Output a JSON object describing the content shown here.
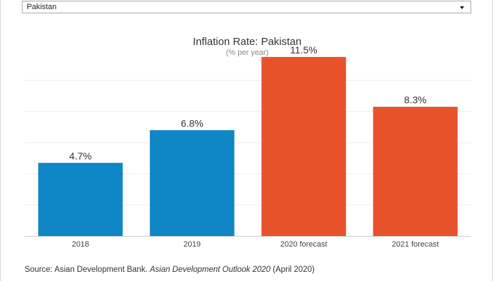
{
  "country_select": {
    "selected": "Pakistan"
  },
  "chart_data": {
    "type": "bar",
    "title": "Inflation Rate: Pakistan",
    "subtitle": "(% per year)",
    "categories": [
      "2018",
      "2019",
      "2020 forecast",
      "2021 forecast"
    ],
    "values": [
      4.7,
      6.8,
      11.5,
      8.3
    ],
    "value_labels": [
      "4.7%",
      "6.8%",
      "11.5%",
      "8.3%"
    ],
    "colors": [
      "#0f86c6",
      "#0f86c6",
      "#e8522a",
      "#e8522a"
    ],
    "ylim": [
      0,
      12
    ],
    "grid": true,
    "xlabel": "",
    "ylabel": ""
  },
  "source": {
    "prefix": "Source: Asian Development Bank. ",
    "title": "Asian Development Outlook 2020",
    "suffix": " (April 2020)"
  }
}
